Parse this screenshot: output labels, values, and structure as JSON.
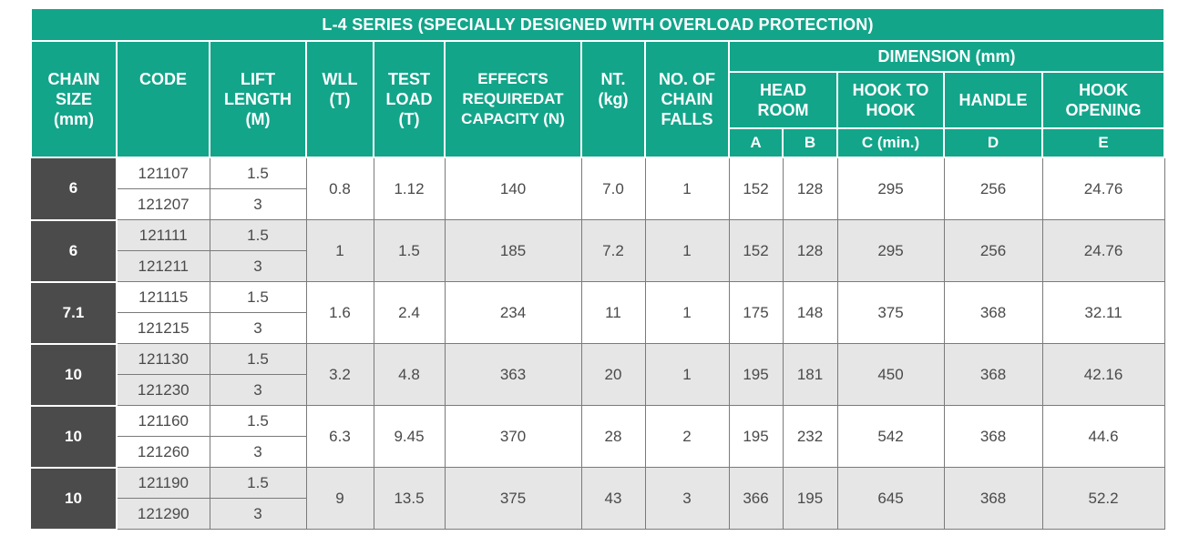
{
  "title": "L-4 SERIES (SPECIALLY DESIGNED WITH OVERLOAD PROTECTION)",
  "headers": {
    "chain_size": [
      "CHAIN",
      "SIZE",
      "(mm)"
    ],
    "code": "CODE",
    "lift_length": [
      "LIFT",
      "LENGTH",
      "(M)"
    ],
    "wll": [
      "WLL",
      "(T)"
    ],
    "test_load": [
      "TEST",
      "LOAD",
      "(T)"
    ],
    "effects": [
      "EFFECTS",
      "REQUIREDAT",
      "CAPACITY (N)"
    ],
    "nt": [
      "NT.",
      "(kg)"
    ],
    "falls": [
      "NO. OF",
      "CHAIN",
      "FALLS"
    ],
    "dimension": "DIMENSION (mm)",
    "head_room": [
      "HEAD",
      "ROOM"
    ],
    "hook_to_hook": [
      "HOOK TO",
      "HOOK"
    ],
    "handle": "HANDLE",
    "hook_opening": [
      "HOOK",
      "OPENING"
    ],
    "sub_a": "A",
    "sub_b": "B",
    "sub_c": "C (min.)",
    "sub_d": "D",
    "sub_e": "E"
  },
  "rows": [
    {
      "size": "6",
      "codes": [
        "121107",
        "121207"
      ],
      "lengths": [
        "1.5",
        "3"
      ],
      "wll": "0.8",
      "test_load": "1.12",
      "effects": "140",
      "nt": "7.0",
      "falls": "1",
      "a": "152",
      "b": "128",
      "c": "295",
      "d": "256",
      "e": "24.76"
    },
    {
      "size": "6",
      "codes": [
        "121111",
        "121211"
      ],
      "lengths": [
        "1.5",
        "3"
      ],
      "wll": "1",
      "test_load": "1.5",
      "effects": "185",
      "nt": "7.2",
      "falls": "1",
      "a": "152",
      "b": "128",
      "c": "295",
      "d": "256",
      "e": "24.76"
    },
    {
      "size": "7.1",
      "codes": [
        "121115",
        "121215"
      ],
      "lengths": [
        "1.5",
        "3"
      ],
      "wll": "1.6",
      "test_load": "2.4",
      "effects": "234",
      "nt": "11",
      "falls": "1",
      "a": "175",
      "b": "148",
      "c": "375",
      "d": "368",
      "e": "32.11"
    },
    {
      "size": "10",
      "codes": [
        "121130",
        "121230"
      ],
      "lengths": [
        "1.5",
        "3"
      ],
      "wll": "3.2",
      "test_load": "4.8",
      "effects": "363",
      "nt": "20",
      "falls": "1",
      "a": "195",
      "b": "181",
      "c": "450",
      "d": "368",
      "e": "42.16"
    },
    {
      "size": "10",
      "codes": [
        "121160",
        "121260"
      ],
      "lengths": [
        "1.5",
        "3"
      ],
      "wll": "6.3",
      "test_load": "9.45",
      "effects": "370",
      "nt": "28",
      "falls": "2",
      "a": "195",
      "b": "232",
      "c": "542",
      "d": "368",
      "e": "44.6"
    },
    {
      "size": "10",
      "codes": [
        "121190",
        "121290"
      ],
      "lengths": [
        "1.5",
        "3"
      ],
      "wll": "9",
      "test_load": "13.5",
      "effects": "375",
      "nt": "43",
      "falls": "3",
      "a": "366",
      "b": "195",
      "c": "645",
      "d": "368",
      "e": "52.2"
    }
  ],
  "colors": {
    "header_green": "#12a58a",
    "size_cell_dark": "#4b4b4b",
    "alt_row_gray": "#e6e6e6"
  }
}
